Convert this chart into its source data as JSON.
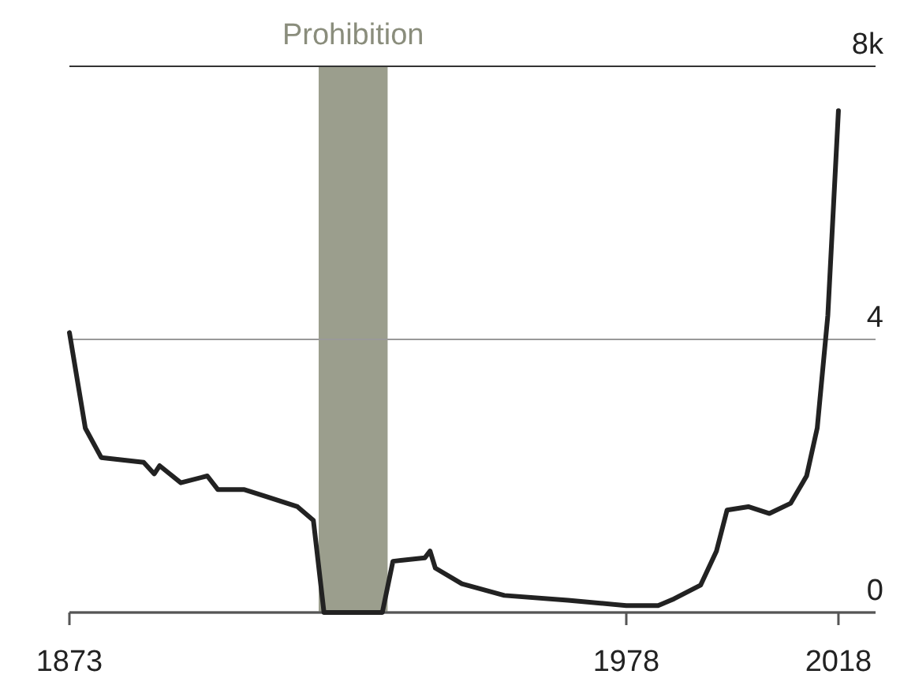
{
  "chart_data": {
    "type": "line",
    "x": [
      1873,
      1876,
      1879,
      1887,
      1889,
      1890,
      1894,
      1899,
      1901,
      1906,
      1910,
      1916,
      1919,
      1921,
      1932,
      1934,
      1940,
      1941,
      1942,
      1947,
      1955,
      1967,
      1978,
      1984,
      1987,
      1992,
      1995,
      1997,
      2001,
      2005,
      2009,
      2012,
      2014,
      2016,
      2018
    ],
    "series": [
      {
        "color": "#222222",
        "values": [
          4.1,
          2.7,
          2.27,
          2.2,
          2.03,
          2.15,
          1.9,
          2.0,
          1.8,
          1.8,
          1.7,
          1.55,
          1.35,
          0,
          0,
          0.75,
          0.8,
          0.9,
          0.65,
          0.42,
          0.25,
          0.18,
          0.1,
          0.1,
          0.2,
          0.4,
          0.9,
          1.5,
          1.55,
          1.45,
          1.6,
          2.0,
          2.7,
          4.35,
          7.35
        ]
      }
    ],
    "xlim": [
      1873,
      2025
    ],
    "xticks": [
      1873,
      1978,
      2018
    ],
    "ylim": [
      0,
      8
    ],
    "yticks": [
      0,
      4,
      {
        "value": 8,
        "label": "8k"
      }
    ],
    "grid": "y",
    "marker": "none",
    "line_style": "solid",
    "legend": false,
    "bands": [
      {
        "axis": "x",
        "from": 1920,
        "to": 1933,
        "label": "Prohibition",
        "color": "#9b9e8d"
      }
    ]
  }
}
